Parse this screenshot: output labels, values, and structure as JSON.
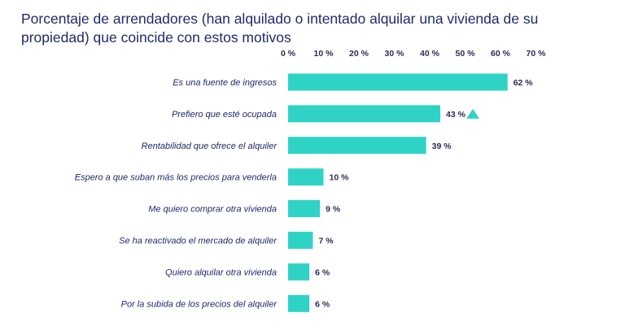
{
  "title": "Porcentaje de arrendadores (han alquilado o intentado alquilar una vivienda de su propiedad) que coincide con estos motivos",
  "chart_data": {
    "type": "bar",
    "orientation": "horizontal",
    "categories": [
      "Es una fuente de ingresos",
      "Prefiero que esté ocupada",
      "Rentabilidad que ofrece el alquiler",
      "Espero a que suban más los precios para venderla",
      "Me quiero comprar otra vivienda",
      "Se ha reactivado el mercado de alquiler",
      "Quiero alquilar otra vivienda",
      "Por la subida de los precios del alquiler"
    ],
    "values": [
      62,
      43,
      39,
      10,
      9,
      7,
      6,
      6
    ],
    "value_labels": [
      "62 %",
      "43 %",
      "39 %",
      "10 %",
      "9 %",
      "7 %",
      "6 %",
      "6 %"
    ],
    "xlim": [
      0,
      70
    ],
    "x_ticks": [
      0,
      10,
      20,
      30,
      40,
      50,
      60,
      70
    ],
    "x_tick_labels": [
      "0 %",
      "10 %",
      "20 %",
      "30 %",
      "40 %",
      "50 %",
      "60 %",
      "70 %"
    ],
    "axis_position": "top",
    "grid": false,
    "bar_color": "#2ed3c6",
    "annotations": [
      {
        "category": "Prefiero que esté ocupada",
        "marker": "triangle-up",
        "color": "#2ed3c6"
      }
    ]
  }
}
